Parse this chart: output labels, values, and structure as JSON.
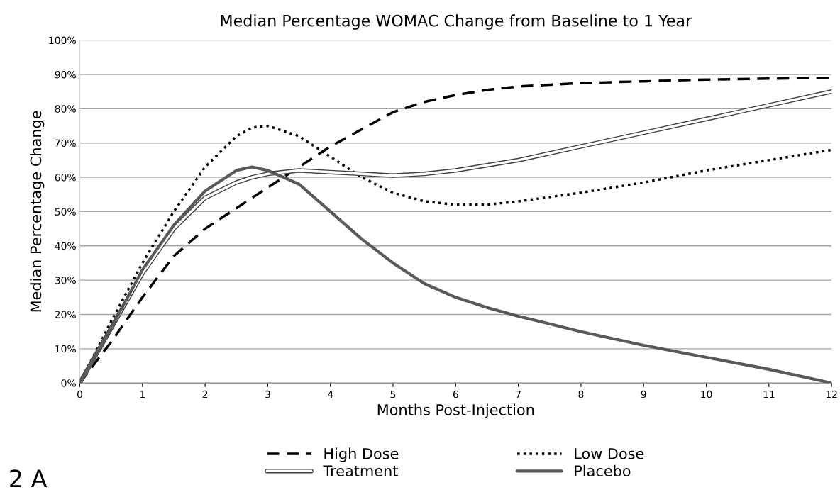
{
  "chart_data": {
    "type": "line",
    "title": "Median Percentage WOMAC Change from Baseline to 1 Year",
    "xlabel": "Months Post-Injection",
    "ylabel": "Median Percentage Change",
    "annotations": [
      "2 A"
    ],
    "x": [
      0,
      0.5,
      1,
      1.5,
      2,
      2.5,
      2.75,
      3,
      3.5,
      4,
      4.5,
      5,
      5.5,
      6,
      6.5,
      7,
      8,
      9,
      10,
      11,
      12
    ],
    "series": [
      {
        "name": "High Dose",
        "color": "#000000",
        "line_style": "dashed",
        "values": [
          0,
          12,
          25,
          37,
          45,
          51,
          54,
          57,
          63,
          69,
          74,
          79,
          82,
          84,
          85.5,
          86.5,
          87.5,
          88,
          88.5,
          88.8,
          89
        ]
      },
      {
        "name": "Low Dose",
        "color": "#000000",
        "line_style": "dotted",
        "values": [
          0,
          18,
          35,
          50,
          63,
          72,
          74.5,
          75,
          72,
          66,
          60,
          55.5,
          53,
          52,
          52,
          53,
          55.5,
          58.5,
          62,
          65,
          68
        ]
      },
      {
        "name": "Treatment",
        "color": "#ffffff",
        "line_style": "solid",
        "values": [
          0,
          16,
          32,
          45,
          54,
          58.5,
          60,
          61,
          62,
          61.5,
          61,
          60.5,
          61,
          62,
          63.5,
          65,
          69,
          73,
          77,
          81,
          85
        ]
      },
      {
        "name": "Placebo",
        "color": "#595959",
        "line_style": "solid",
        "values": [
          0,
          16,
          33,
          46,
          56,
          62,
          63,
          62,
          58,
          50,
          42,
          35,
          29,
          25,
          22,
          19.5,
          15,
          11,
          7.5,
          4,
          0
        ]
      }
    ],
    "xlim": [
      0,
      12
    ],
    "xticks": [
      0,
      1,
      2,
      3,
      4,
      5,
      6,
      7,
      8,
      9,
      10,
      11,
      12
    ],
    "ylim": [
      0,
      100
    ],
    "yticks": [
      {
        "value": 0,
        "label": "0%"
      },
      {
        "value": 10,
        "label": "10%"
      },
      {
        "value": 20,
        "label": "20%"
      },
      {
        "value": 30,
        "label": "30%"
      },
      {
        "value": 40,
        "label": "40%"
      },
      {
        "value": 50,
        "label": "50%"
      },
      {
        "value": 60,
        "label": "60%"
      },
      {
        "value": 70,
        "label": "70%"
      },
      {
        "value": 80,
        "label": "80%"
      },
      {
        "value": 90,
        "label": "90%"
      },
      {
        "value": 100,
        "label": "100%"
      }
    ],
    "grid": "y",
    "legend": "bottom",
    "marker": "none"
  }
}
